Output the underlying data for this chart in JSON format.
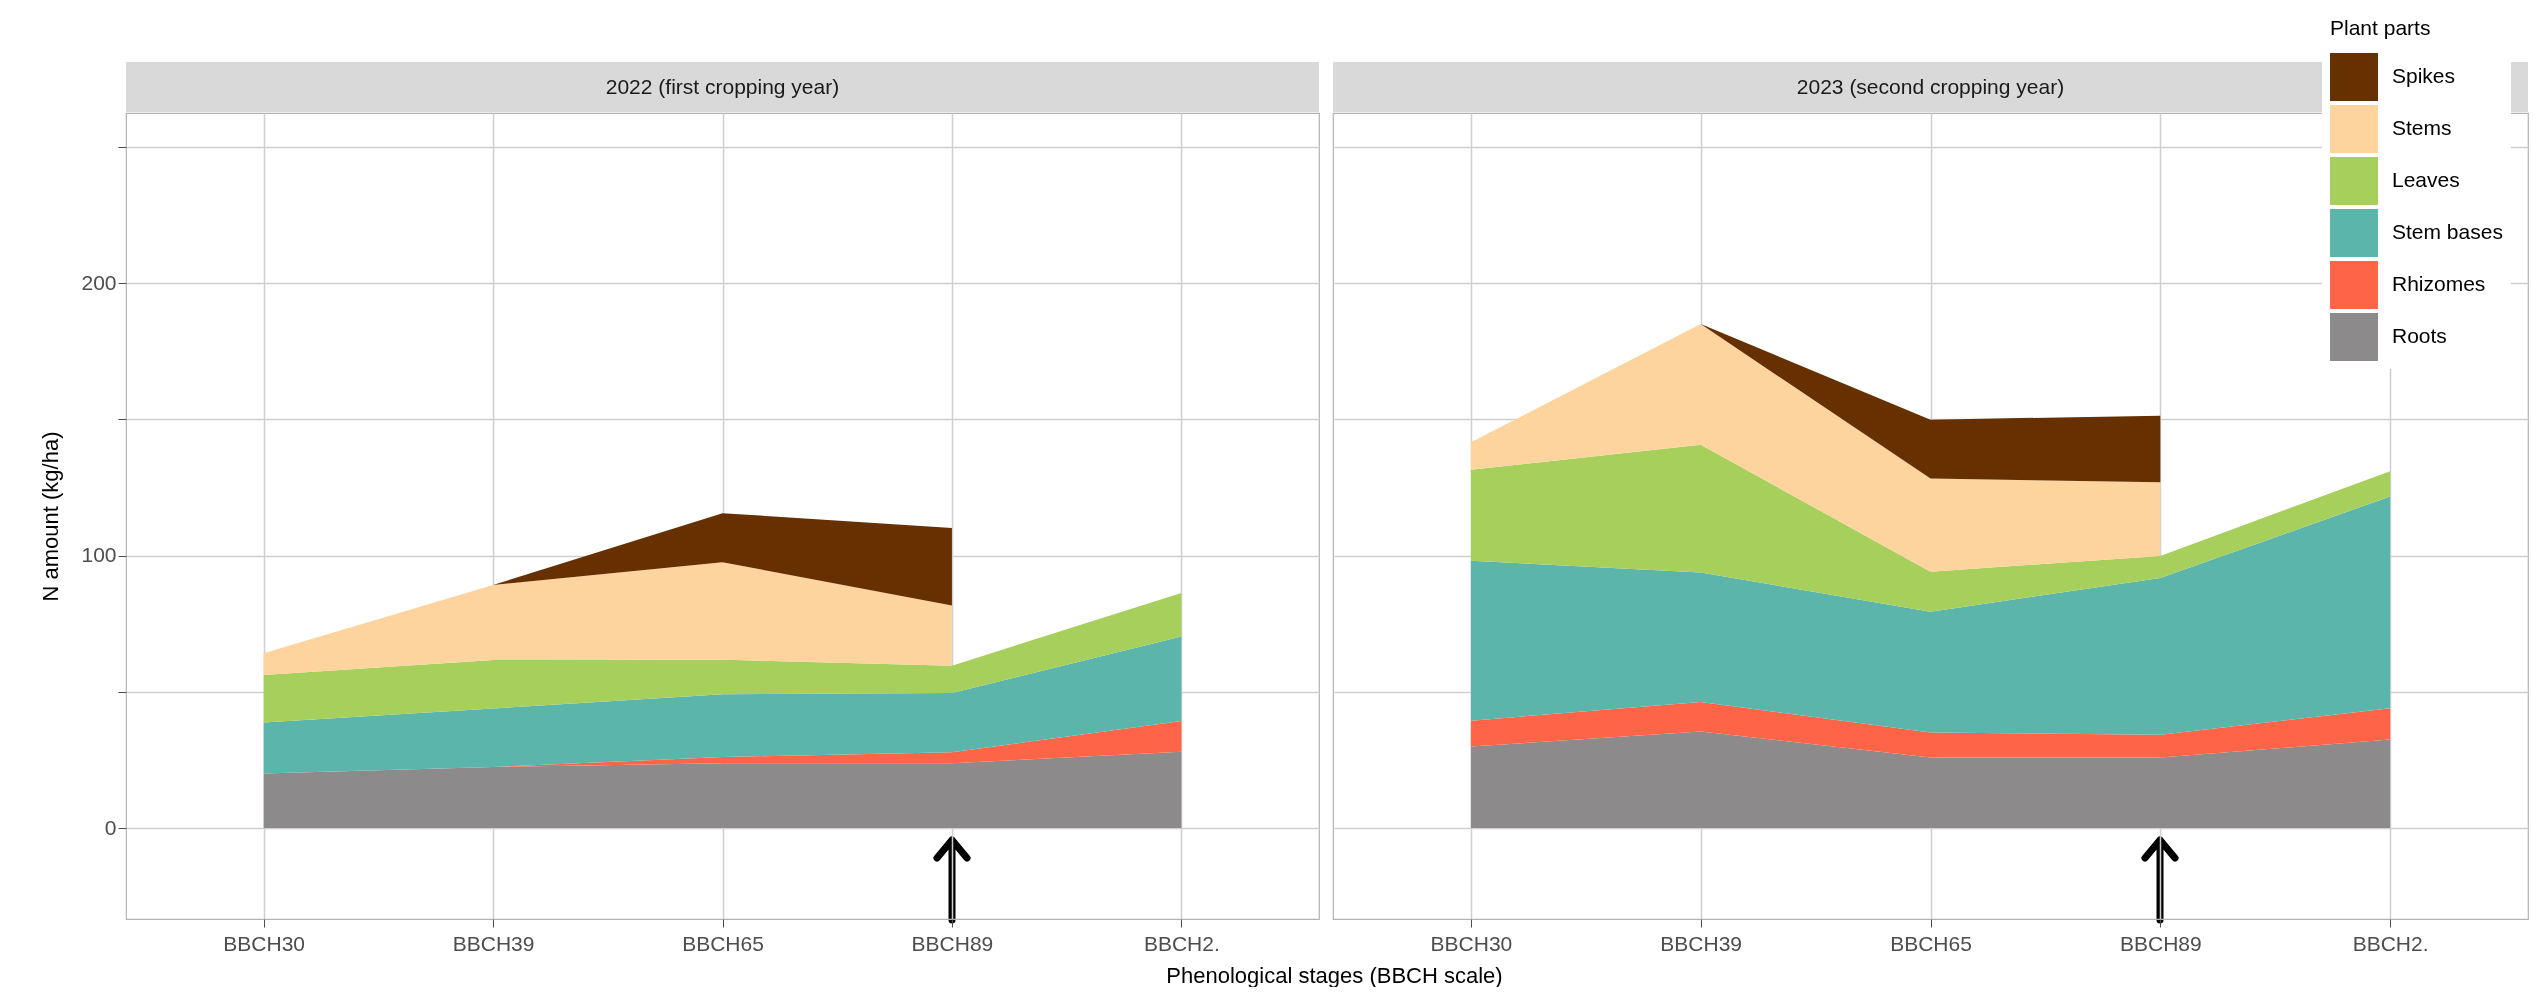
{
  "chart_data": [
    {
      "type": "area",
      "stacked": true,
      "title": "2022 (first cropping year)",
      "xlabel": "Phenological stages (BBCH scale)",
      "ylabel": "N amount (kg/ha)",
      "categories": [
        "BBCH30",
        "BBCH39",
        "BBCH65",
        "BBCH89",
        "BBCH2."
      ],
      "ylim": [
        -33.4,
        262.5
      ],
      "yticks": [
        0,
        {
          "value": 50,
          "label": null
        },
        100,
        {
          "value": 150,
          "label": null
        },
        200,
        {
          "value": 250,
          "label": null
        }
      ],
      "grid": true,
      "series": [
        {
          "color": "#8c8a8a",
          "values": [
            20,
            22.4,
            23.8,
            23.8,
            28
          ]
        },
        {
          "color": "#fe6548",
          "values": [
            0,
            0,
            2.3,
            4,
            11.3
          ]
        },
        {
          "color": "#5bb5ab",
          "values": [
            18.7,
            21.5,
            23,
            21.8,
            31
          ]
        },
        {
          "color": "#a6cf5c",
          "values": [
            17.5,
            17.8,
            12.7,
            10,
            16
          ]
        },
        {
          "color": "#fdd49e",
          "values": [
            8,
            27.5,
            35.8,
            22.1,
            null
          ]
        },
        {
          "color": "#663000",
          "values": [
            null,
            0,
            18,
            28.4,
            null
          ]
        }
      ]
    },
    {
      "type": "area",
      "stacked": true,
      "title": "2023 (second cropping year)",
      "legend_title": "Plant parts",
      "legend": "top right",
      "tick_labels": "x",
      "categories": [
        "BBCH30",
        "BBCH39",
        "BBCH65",
        "BBCH89",
        "BBCH2."
      ],
      "ylim": [
        -33.4,
        262.5
      ],
      "yticks": [
        0,
        {
          "value": 50,
          "label": null
        },
        100,
        {
          "value": 150,
          "label": null
        },
        200,
        {
          "value": 250,
          "label": null
        }
      ],
      "grid": true,
      "series": [
        {
          "name": "Roots",
          "color": "#8c8a8a",
          "values": [
            29.9,
            35.4,
            25.9,
            25.9,
            32.5
          ]
        },
        {
          "name": "Rhizomes",
          "color": "#fe6548",
          "values": [
            9.5,
            10.9,
            9.2,
            8.3,
            11.5
          ]
        },
        {
          "name": "Stem bases",
          "color": "#5bb5ab",
          "values": [
            58.7,
            47.5,
            44.3,
            57.6,
            77.7
          ]
        },
        {
          "name": "Leaves",
          "color": "#a6cf5c",
          "values": [
            33.4,
            46.9,
            14.7,
            8.1,
            9.3
          ]
        },
        {
          "name": "Stems",
          "color": "#fdd49e",
          "values": [
            10.1,
            44.3,
            34.2,
            27,
            null
          ]
        },
        {
          "name": "Spikes",
          "color": "#663000",
          "values": [
            null,
            0,
            21.6,
            24.5,
            null
          ]
        }
      ]
    }
  ]
}
